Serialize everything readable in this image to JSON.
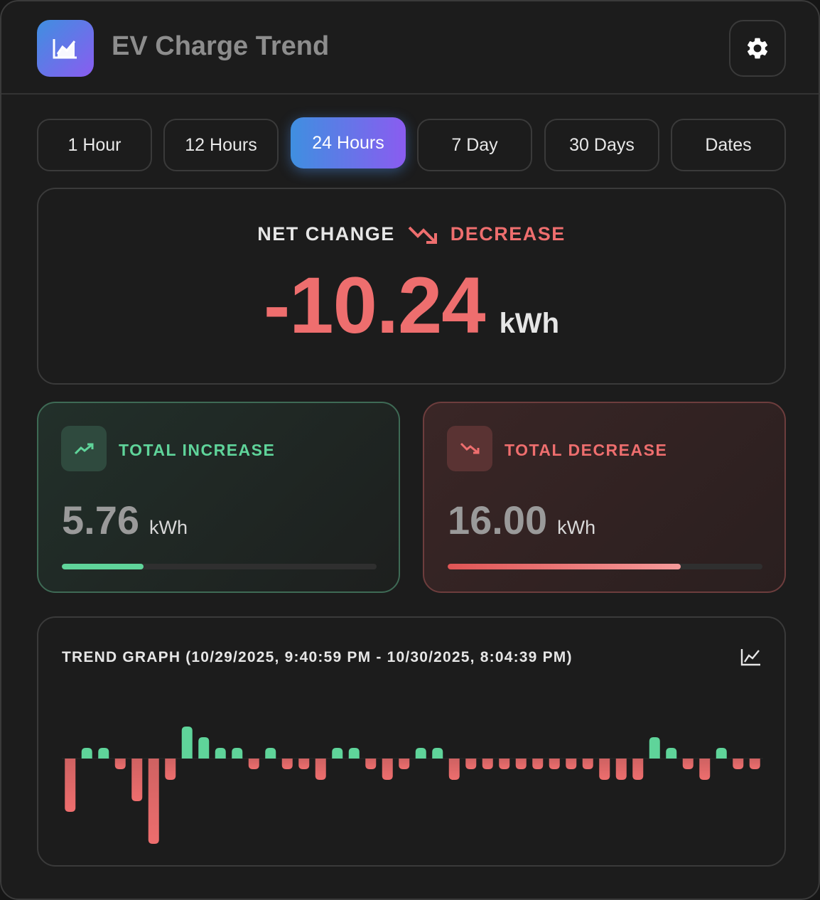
{
  "app": {
    "title": "EV Charge Trend",
    "logo_icon": "chart-line-icon",
    "settings_icon": "gear-icon"
  },
  "tabs": [
    {
      "label": "1 Hour",
      "active": false
    },
    {
      "label": "12 Hours",
      "active": false
    },
    {
      "label": "24 Hours",
      "active": true
    },
    {
      "label": "7 Day",
      "active": false
    },
    {
      "label": "30 Days",
      "active": false
    },
    {
      "label": "Dates",
      "active": false
    }
  ],
  "net_change": {
    "label": "NET CHANGE",
    "direction": "DECREASE",
    "value": "-10.24",
    "unit": "kWh",
    "icon": "trending-down-icon"
  },
  "total_increase": {
    "label": "TOTAL INCREASE",
    "value": "5.76",
    "unit": "kWh",
    "fill_fraction": 0.26,
    "icon": "trending-up-icon"
  },
  "total_decrease": {
    "label": "TOTAL DECREASE",
    "value": "16.00",
    "unit": "kWh",
    "fill_fraction": 0.74,
    "icon": "trending-down-icon"
  },
  "trend": {
    "title": "TREND GRAPH (10/29/2025, 9:40:59 PM - 10/30/2025, 8:04:39 PM)",
    "icon": "chart-line-icon"
  },
  "colors": {
    "increase": "#5fd49a",
    "decrease": "#ee6e6e",
    "accent_start": "#3f8fe0",
    "accent_end": "#8a5cf0"
  },
  "chart_data": {
    "type": "bar",
    "values": [
      -1.0,
      0.2,
      0.2,
      -0.2,
      -0.8,
      -1.6,
      -0.4,
      0.6,
      0.4,
      0.2,
      0.2,
      -0.2,
      0.2,
      -0.2,
      -0.2,
      -0.4,
      0.2,
      0.2,
      -0.2,
      -0.4,
      -0.2,
      0.2,
      0.2,
      -0.4,
      -0.2,
      -0.2,
      -0.2,
      -0.2,
      -0.2,
      -0.2,
      -0.2,
      -0.2,
      -0.4,
      -0.4,
      -0.4,
      0.4,
      0.2,
      -0.2,
      -0.4,
      0.2,
      -0.2,
      -0.2
    ],
    "ylim": [
      -1.6,
      0.6
    ]
  }
}
